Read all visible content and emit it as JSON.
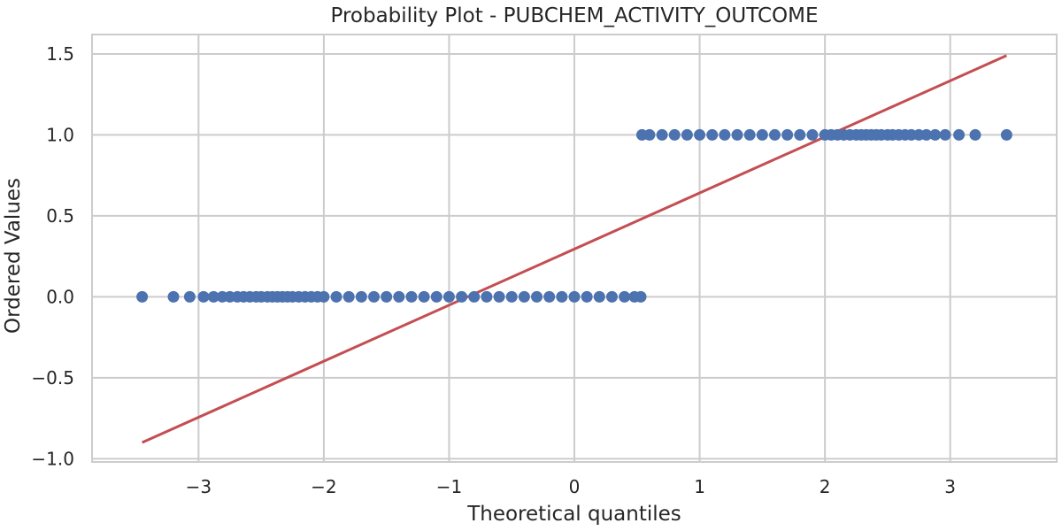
{
  "chart_data": {
    "type": "scatter",
    "title": "Probability Plot - PUBCHEM_ACTIVITY_OUTCOME",
    "xlabel": "Theoretical quantiles",
    "ylabel": "Ordered Values",
    "xlim": [
      -3.85,
      3.85
    ],
    "ylim": [
      -1.02,
      1.62
    ],
    "x_ticks": [
      -3,
      -2,
      -1,
      0,
      1,
      2,
      3
    ],
    "x_tick_labels": [
      "−3",
      "−2",
      "−1",
      "0",
      "1",
      "2",
      "3"
    ],
    "y_ticks": [
      -1.0,
      -0.5,
      0.0,
      0.5,
      1.0,
      1.5
    ],
    "y_tick_labels": [
      "−1.0",
      "−0.5",
      "0.0",
      "0.5",
      "1.0",
      "1.5"
    ],
    "grid": true,
    "series": [
      {
        "color": "#4c72b0",
        "marker": "circle",
        "points": [
          {
            "x": -3.45,
            "y": 0
          },
          {
            "x": -3.2,
            "y": 0
          },
          {
            "x": -3.07,
            "y": 0
          },
          {
            "x": -2.96,
            "y": 0
          },
          {
            "x": -2.88,
            "y": 0
          },
          {
            "x": -2.81,
            "y": 0
          },
          {
            "x": -2.75,
            "y": 0
          },
          {
            "x": -2.69,
            "y": 0
          },
          {
            "x": -2.64,
            "y": 0
          },
          {
            "x": -2.59,
            "y": 0
          },
          {
            "x": -2.54,
            "y": 0
          },
          {
            "x": -2.5,
            "y": 0
          },
          {
            "x": -2.45,
            "y": 0
          },
          {
            "x": -2.41,
            "y": 0
          },
          {
            "x": -2.37,
            "y": 0
          },
          {
            "x": -2.33,
            "y": 0
          },
          {
            "x": -2.29,
            "y": 0
          },
          {
            "x": -2.25,
            "y": 0
          },
          {
            "x": -2.2,
            "y": 0
          },
          {
            "x": -2.15,
            "y": 0
          },
          {
            "x": -2.1,
            "y": 0
          },
          {
            "x": -2.05,
            "y": 0
          },
          {
            "x": -2.0,
            "y": 0
          },
          {
            "x": -1.9,
            "y": 0
          },
          {
            "x": -1.8,
            "y": 0
          },
          {
            "x": -1.7,
            "y": 0
          },
          {
            "x": -1.6,
            "y": 0
          },
          {
            "x": -1.5,
            "y": 0
          },
          {
            "x": -1.4,
            "y": 0
          },
          {
            "x": -1.3,
            "y": 0
          },
          {
            "x": -1.2,
            "y": 0
          },
          {
            "x": -1.1,
            "y": 0
          },
          {
            "x": -1.0,
            "y": 0
          },
          {
            "x": -0.9,
            "y": 0
          },
          {
            "x": -0.8,
            "y": 0
          },
          {
            "x": -0.7,
            "y": 0
          },
          {
            "x": -0.6,
            "y": 0
          },
          {
            "x": -0.5,
            "y": 0
          },
          {
            "x": -0.4,
            "y": 0
          },
          {
            "x": -0.3,
            "y": 0
          },
          {
            "x": -0.2,
            "y": 0
          },
          {
            "x": -0.1,
            "y": 0
          },
          {
            "x": 0.0,
            "y": 0
          },
          {
            "x": 0.1,
            "y": 0
          },
          {
            "x": 0.2,
            "y": 0
          },
          {
            "x": 0.3,
            "y": 0
          },
          {
            "x": 0.4,
            "y": 0
          },
          {
            "x": 0.48,
            "y": 0
          },
          {
            "x": 0.53,
            "y": 0
          },
          {
            "x": 0.54,
            "y": 1
          },
          {
            "x": 0.6,
            "y": 1
          },
          {
            "x": 0.7,
            "y": 1
          },
          {
            "x": 0.8,
            "y": 1
          },
          {
            "x": 0.9,
            "y": 1
          },
          {
            "x": 1.0,
            "y": 1
          },
          {
            "x": 1.1,
            "y": 1
          },
          {
            "x": 1.2,
            "y": 1
          },
          {
            "x": 1.3,
            "y": 1
          },
          {
            "x": 1.4,
            "y": 1
          },
          {
            "x": 1.5,
            "y": 1
          },
          {
            "x": 1.6,
            "y": 1
          },
          {
            "x": 1.7,
            "y": 1
          },
          {
            "x": 1.8,
            "y": 1
          },
          {
            "x": 1.9,
            "y": 1
          },
          {
            "x": 2.0,
            "y": 1
          },
          {
            "x": 2.05,
            "y": 1
          },
          {
            "x": 2.1,
            "y": 1
          },
          {
            "x": 2.15,
            "y": 1
          },
          {
            "x": 2.2,
            "y": 1
          },
          {
            "x": 2.25,
            "y": 1
          },
          {
            "x": 2.29,
            "y": 1
          },
          {
            "x": 2.33,
            "y": 1
          },
          {
            "x": 2.37,
            "y": 1
          },
          {
            "x": 2.41,
            "y": 1
          },
          {
            "x": 2.45,
            "y": 1
          },
          {
            "x": 2.5,
            "y": 1
          },
          {
            "x": 2.54,
            "y": 1
          },
          {
            "x": 2.59,
            "y": 1
          },
          {
            "x": 2.64,
            "y": 1
          },
          {
            "x": 2.69,
            "y": 1
          },
          {
            "x": 2.75,
            "y": 1
          },
          {
            "x": 2.81,
            "y": 1
          },
          {
            "x": 2.88,
            "y": 1
          },
          {
            "x": 2.96,
            "y": 1
          },
          {
            "x": 3.07,
            "y": 1
          },
          {
            "x": 3.2,
            "y": 1
          },
          {
            "x": 3.45,
            "y": 1
          }
        ]
      },
      {
        "type": "line",
        "color": "#c44e52",
        "points": [
          {
            "x": -3.45,
            "y": -0.9
          },
          {
            "x": 3.45,
            "y": 1.49
          }
        ]
      }
    ]
  }
}
